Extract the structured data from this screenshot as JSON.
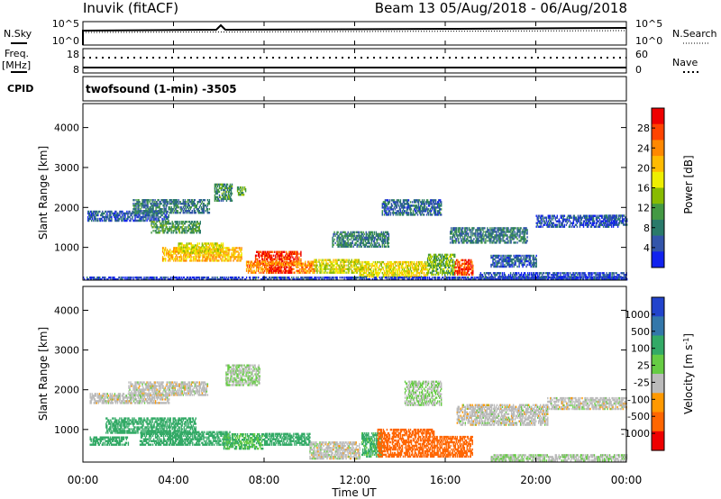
{
  "header": {
    "station": "Inuvik (fitACF)",
    "beam_range": "Beam 13 05/Aug/2018 - 06/Aug/2018"
  },
  "panel_labels": {
    "nsky": "N.Sky",
    "nsearch": "N.Search",
    "freq_line1": "Freq.",
    "freq_line2": "[MHz]",
    "nave": "Nave",
    "cpid": "CPID",
    "cpid_value": "twofsound (1-min) -3505"
  },
  "noise_axis": {
    "left_ticks": [
      "10^5",
      "10^0"
    ],
    "right_ticks": [
      "10^5",
      "10^0"
    ]
  },
  "freq_axis": {
    "left_ticks": [
      "18",
      "8"
    ],
    "right_ticks": [
      "60",
      "0"
    ]
  },
  "power_colorbar": {
    "label": "Power [dB]",
    "ticks": [
      "28",
      "24",
      "20",
      "16",
      "12",
      "8",
      "4"
    ],
    "colors": [
      "#ee0000",
      "#ff4400",
      "#ff8800",
      "#ffbb00",
      "#eeee00",
      "#88bb00",
      "#449944",
      "#2a7a6a",
      "#3355aa",
      "#1122ee"
    ]
  },
  "velocity_colorbar": {
    "label": "Velocity [m s",
    "label_sup": "-1",
    "label_end": "]",
    "ticks": [
      "1000",
      "500",
      "100",
      "25",
      "-25",
      "-100",
      "-500",
      "-1000"
    ],
    "colors": [
      "#2244cc",
      "#3377aa",
      "#33aa66",
      "#66cc44",
      "#bbbbbb",
      "#ff9900",
      "#ff6600",
      "#ee0000"
    ]
  },
  "chart_data": {
    "type": "heatmap",
    "title": "Inuvik (fitACF) Beam 13 05/Aug/2018 - 06/Aug/2018",
    "xlabel": "Time UT",
    "ylabel": "Slant Range [km]",
    "x_ticks": [
      "00:00",
      "04:00",
      "08:00",
      "12:00",
      "16:00",
      "20:00",
      "00:00"
    ],
    "xlim_hours": [
      0,
      24
    ],
    "ylim": [
      180,
      4600
    ],
    "y_ticks": [
      1000,
      2000,
      3000,
      4000
    ],
    "panels": [
      {
        "name": "Power [dB]",
        "scale": [
          0,
          30
        ],
        "regions": [
          {
            "t": [
              0.2,
              3.8
            ],
            "r": [
              1650,
              1900
            ],
            "v": 5
          },
          {
            "t": [
              2.2,
              5.6
            ],
            "r": [
              1850,
              2200
            ],
            "v": 7
          },
          {
            "t": [
              3.0,
              5.2
            ],
            "r": [
              1350,
              1650
            ],
            "v": 10
          },
          {
            "t": [
              5.8,
              6.6
            ],
            "r": [
              2150,
              2600
            ],
            "v": 9
          },
          {
            "t": [
              6.8,
              7.2
            ],
            "r": [
              2300,
              2500
            ],
            "v": 12
          },
          {
            "t": [
              3.5,
              7.0
            ],
            "r": [
              650,
              1000
            ],
            "v": 20
          },
          {
            "t": [
              4.2,
              6.2
            ],
            "r": [
              850,
              1100
            ],
            "v": 16
          },
          {
            "t": [
              7.6,
              9.6
            ],
            "r": [
              550,
              900
            ],
            "v": 27
          },
          {
            "t": [
              7.2,
              10.2
            ],
            "r": [
              350,
              650
            ],
            "v": 22
          },
          {
            "t": [
              8.2,
              9.2
            ],
            "r": [
              350,
              500
            ],
            "v": 28
          },
          {
            "t": [
              10.2,
              12.2
            ],
            "r": [
              350,
              700
            ],
            "v": 16
          },
          {
            "t": [
              12.2,
              15.2
            ],
            "r": [
              250,
              650
            ],
            "v": 17
          },
          {
            "t": [
              15.2,
              16.4
            ],
            "r": [
              300,
              800
            ],
            "v": 12
          },
          {
            "t": [
              16.4,
              17.2
            ],
            "r": [
              300,
              700
            ],
            "v": 26
          },
          {
            "t": [
              11.0,
              13.5
            ],
            "r": [
              1000,
              1400
            ],
            "v": 8
          },
          {
            "t": [
              13.2,
              15.8
            ],
            "r": [
              1800,
              2200
            ],
            "v": 6
          },
          {
            "t": [
              16.2,
              19.6
            ],
            "r": [
              1100,
              1500
            ],
            "v": 7
          },
          {
            "t": [
              18.0,
              20.0
            ],
            "r": [
              500,
              800
            ],
            "v": 5
          },
          {
            "t": [
              20.0,
              23.6
            ],
            "r": [
              1500,
              1800
            ],
            "v": 4
          },
          {
            "t": [
              23.0,
              24.0
            ],
            "r": [
              1550,
              1800
            ],
            "v": 5
          },
          {
            "t": [
              17.5,
              24.0
            ],
            "r": [
              200,
              350
            ],
            "v": 4
          },
          {
            "t": [
              0.0,
              24.0
            ],
            "r": [
              180,
              260
            ],
            "v": 3
          }
        ]
      },
      {
        "name": "Velocity [m s-1]",
        "scale": [
          -1000,
          1000
        ],
        "regions": [
          {
            "t": [
              0.3,
              3.8
            ],
            "r": [
              1650,
              1900
            ],
            "v": 0
          },
          {
            "t": [
              2.0,
              5.5
            ],
            "r": [
              1850,
              2200
            ],
            "v": 0
          },
          {
            "t": [
              1.0,
              5.0
            ],
            "r": [
              900,
              1300
            ],
            "v": 110
          },
          {
            "t": [
              2.5,
              6.5
            ],
            "r": [
              600,
              950
            ],
            "v": 120
          },
          {
            "t": [
              0.3,
              2.0
            ],
            "r": [
              600,
              800
            ],
            "v": 90
          },
          {
            "t": [
              6.2,
              8.0
            ],
            "r": [
              500,
              900
            ],
            "v": 60
          },
          {
            "t": [
              8.0,
              10.0
            ],
            "r": [
              600,
              900
            ],
            "v": 130
          },
          {
            "t": [
              6.3,
              7.8
            ],
            "r": [
              2100,
              2600
            ],
            "v": 20
          },
          {
            "t": [
              10.0,
              12.2
            ],
            "r": [
              250,
              700
            ],
            "v": 0
          },
          {
            "t": [
              12.3,
              13.2
            ],
            "r": [
              300,
              900
            ],
            "v": 80
          },
          {
            "t": [
              13.0,
              15.5
            ],
            "r": [
              300,
              1000
            ],
            "v": -450
          },
          {
            "t": [
              15.5,
              17.2
            ],
            "r": [
              300,
              800
            ],
            "v": -500
          },
          {
            "t": [
              14.2,
              15.8
            ],
            "r": [
              1600,
              2200
            ],
            "v": 20
          },
          {
            "t": [
              16.5,
              20.5
            ],
            "r": [
              1100,
              1600
            ],
            "v": 0
          },
          {
            "t": [
              20.5,
              24.0
            ],
            "r": [
              1500,
              1800
            ],
            "v": 0
          },
          {
            "t": [
              18.0,
              24.0
            ],
            "r": [
              200,
              350
            ],
            "v": 15
          }
        ]
      }
    ]
  }
}
